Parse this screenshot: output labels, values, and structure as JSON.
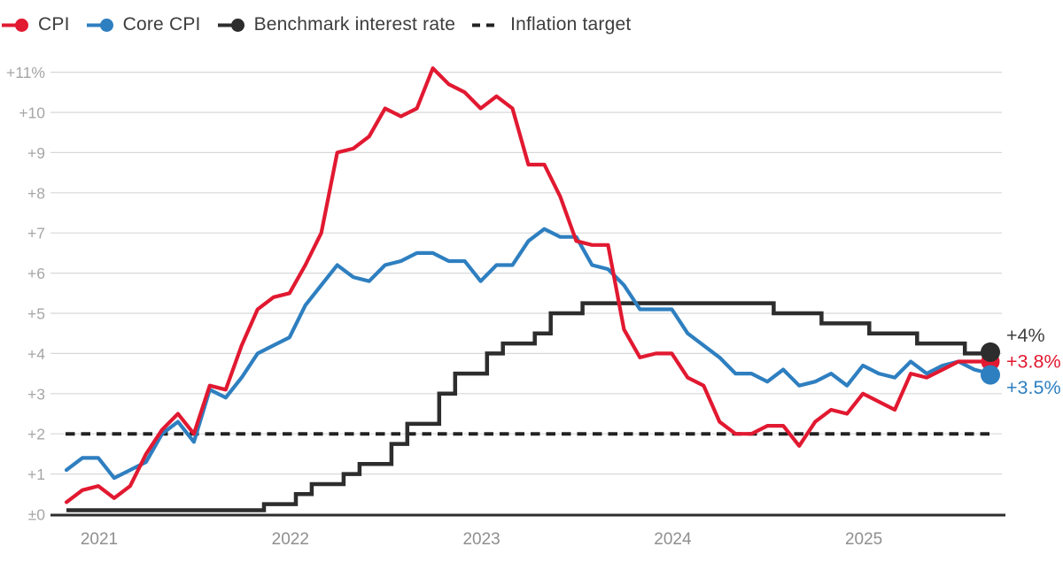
{
  "chart_data": {
    "type": "line",
    "x_months": [
      "2020-11",
      "2020-12",
      "2021-01",
      "2021-02",
      "2021-03",
      "2021-04",
      "2021-05",
      "2021-06",
      "2021-07",
      "2021-08",
      "2021-09",
      "2021-10",
      "2021-11",
      "2021-12",
      "2022-01",
      "2022-02",
      "2022-03",
      "2022-04",
      "2022-05",
      "2022-06",
      "2022-07",
      "2022-08",
      "2022-09",
      "2022-10",
      "2022-11",
      "2022-12",
      "2023-01",
      "2023-02",
      "2023-03",
      "2023-04",
      "2023-05",
      "2023-06",
      "2023-07",
      "2023-08",
      "2023-09",
      "2023-10",
      "2023-11",
      "2023-12",
      "2024-01",
      "2024-02",
      "2024-03",
      "2024-04",
      "2024-05",
      "2024-06",
      "2024-07",
      "2024-08",
      "2024-09",
      "2024-10",
      "2024-11",
      "2024-12",
      "2025-01",
      "2025-02",
      "2025-03",
      "2025-04",
      "2025-05",
      "2025-06",
      "2025-07",
      "2025-08",
      "2025-09"
    ],
    "series": [
      {
        "name": "CPI",
        "color": "#e11931",
        "values": [
          0.3,
          0.6,
          0.7,
          0.4,
          0.7,
          1.5,
          2.1,
          2.5,
          2.0,
          3.2,
          3.1,
          4.2,
          5.1,
          5.4,
          5.5,
          6.2,
          7.0,
          9.0,
          9.1,
          9.4,
          10.1,
          9.9,
          10.1,
          11.1,
          10.7,
          10.5,
          10.1,
          10.4,
          10.1,
          8.7,
          8.7,
          7.9,
          6.8,
          6.7,
          6.7,
          4.6,
          3.9,
          4.0,
          4.0,
          3.4,
          3.2,
          2.3,
          2.0,
          2.0,
          2.2,
          2.2,
          1.7,
          2.3,
          2.6,
          2.5,
          3.0,
          2.8,
          2.6,
          3.5,
          3.4,
          3.6,
          3.8,
          3.8,
          3.8
        ]
      },
      {
        "name": "Core CPI",
        "color": "#2e7fc0",
        "values": [
          1.1,
          1.4,
          1.4,
          0.9,
          1.1,
          1.3,
          2.0,
          2.3,
          1.8,
          3.1,
          2.9,
          3.4,
          4.0,
          4.2,
          4.4,
          5.2,
          5.7,
          6.2,
          5.9,
          5.8,
          6.2,
          6.3,
          6.5,
          6.5,
          6.3,
          6.3,
          5.8,
          6.2,
          6.2,
          6.8,
          7.1,
          6.9,
          6.9,
          6.2,
          6.1,
          5.7,
          5.1,
          5.1,
          5.1,
          4.5,
          4.2,
          3.9,
          3.5,
          3.5,
          3.3,
          3.6,
          3.2,
          3.3,
          3.5,
          3.2,
          3.7,
          3.5,
          3.4,
          3.8,
          3.5,
          3.7,
          3.8,
          3.6,
          3.5
        ]
      },
      {
        "name": "Benchmark interest rate",
        "type": "step",
        "color": "#2d2d2d",
        "start_rate": 0.1,
        "changes": [
          {
            "month": "2021-12",
            "rate": 0.25
          },
          {
            "month": "2022-02",
            "rate": 0.5
          },
          {
            "month": "2022-03",
            "rate": 0.75
          },
          {
            "month": "2022-05",
            "rate": 1.0
          },
          {
            "month": "2022-06",
            "rate": 1.25
          },
          {
            "month": "2022-08",
            "rate": 1.75
          },
          {
            "month": "2022-09",
            "rate": 2.25
          },
          {
            "month": "2022-11",
            "rate": 3.0
          },
          {
            "month": "2022-12",
            "rate": 3.5
          },
          {
            "month": "2023-02",
            "rate": 4.0
          },
          {
            "month": "2023-03",
            "rate": 4.25
          },
          {
            "month": "2023-05",
            "rate": 4.5
          },
          {
            "month": "2023-06",
            "rate": 5.0
          },
          {
            "month": "2023-08",
            "rate": 5.25
          },
          {
            "month": "2024-08",
            "rate": 5.0
          },
          {
            "month": "2024-11",
            "rate": 4.75
          },
          {
            "month": "2025-02",
            "rate": 4.5
          },
          {
            "month": "2025-05",
            "rate": 4.25
          },
          {
            "month": "2025-08",
            "rate": 4.0
          }
        ]
      },
      {
        "name": "Inflation target",
        "type": "dashed-constant",
        "color": "#222222",
        "value": 2.0
      }
    ],
    "y_axis": {
      "min": 0,
      "max": 11,
      "ticks": [
        "+11%",
        "+10",
        "+9",
        "+8",
        "+7",
        "+6",
        "+5",
        "+4",
        "+3",
        "+2",
        "+1",
        "±0"
      ],
      "values": [
        11,
        10,
        9,
        8,
        7,
        6,
        5,
        4,
        3,
        2,
        1,
        0
      ],
      "grid": true
    },
    "x_axis": {
      "year_labels": [
        {
          "label": "2021",
          "month": "2021-01"
        },
        {
          "label": "2022",
          "month": "2022-01"
        },
        {
          "label": "2023",
          "month": "2023-01"
        },
        {
          "label": "2024",
          "month": "2024-01"
        },
        {
          "label": "2025",
          "month": "2025-01"
        }
      ]
    },
    "end_labels": [
      {
        "text": "+4%",
        "series": "Benchmark interest rate",
        "value": 4.0,
        "color": "#3f3f3f"
      },
      {
        "text": "+3.8%",
        "series": "CPI",
        "value": 3.8,
        "color": "#e11931"
      },
      {
        "text": "+3.5%",
        "series": "Core CPI",
        "value": 3.5,
        "color": "#2e7fc0"
      }
    ],
    "legend": [
      {
        "label": "CPI",
        "style": "line-dot",
        "color": "#e11931"
      },
      {
        "label": "Core CPI",
        "style": "line-dot",
        "color": "#2e7fc0"
      },
      {
        "label": "Benchmark interest rate",
        "style": "line-dot",
        "color": "#2d2d2d"
      },
      {
        "label": "Inflation target",
        "style": "dashed",
        "color": "#222222"
      }
    ]
  }
}
